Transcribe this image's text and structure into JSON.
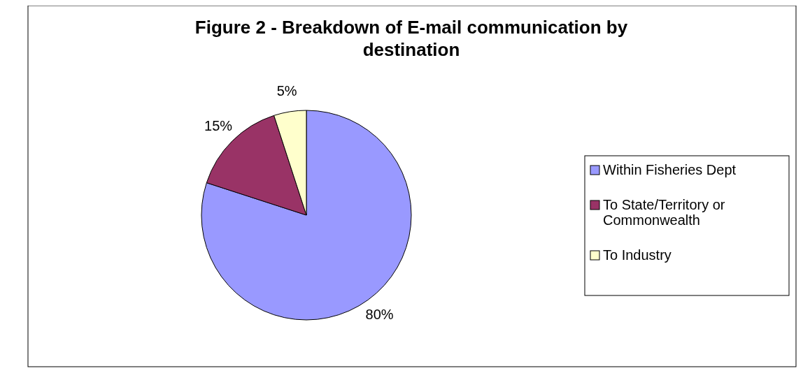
{
  "chart_data": {
    "type": "pie",
    "title": "Figure 2 - Breakdown of E-mail communication by destination",
    "categories": [
      "Within Fisheries Dept",
      "To State/Territory or Commonwealth",
      "To Industry"
    ],
    "values": [
      80,
      15,
      5
    ],
    "colors": [
      "#9999ff",
      "#993366",
      "#ffffcc"
    ],
    "value_labels": [
      "80%",
      "15%",
      "5%"
    ],
    "legend": "right"
  }
}
